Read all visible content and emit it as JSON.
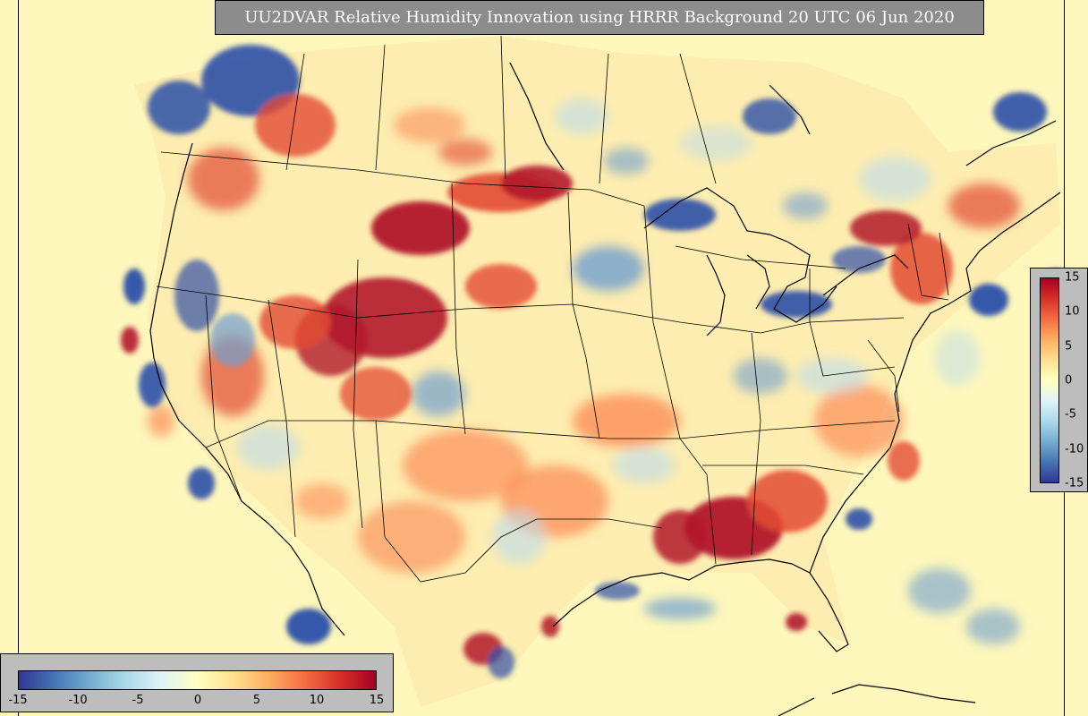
{
  "title": "UU2DVAR Relative Humidity Innovation using HRRR Background 20 UTC 06 Jun 2020",
  "colorbar": {
    "min": -15,
    "max": 15,
    "colors": [
      "#313695",
      "#4575b4",
      "#74add1",
      "#abd9e9",
      "#e0f3f8",
      "#ffffbf",
      "#fee090",
      "#fdae61",
      "#f46d43",
      "#d73027",
      "#a50026"
    ],
    "horizontal_ticks": [
      "-15",
      "-10",
      "-5",
      "0",
      "5",
      "10",
      "15"
    ],
    "vertical_ticks": [
      "15",
      "10",
      "5",
      "0",
      "-5",
      "-10",
      "-15"
    ]
  },
  "map": {
    "background_color": "#fdf7bc",
    "boundary_color": "#000000"
  }
}
